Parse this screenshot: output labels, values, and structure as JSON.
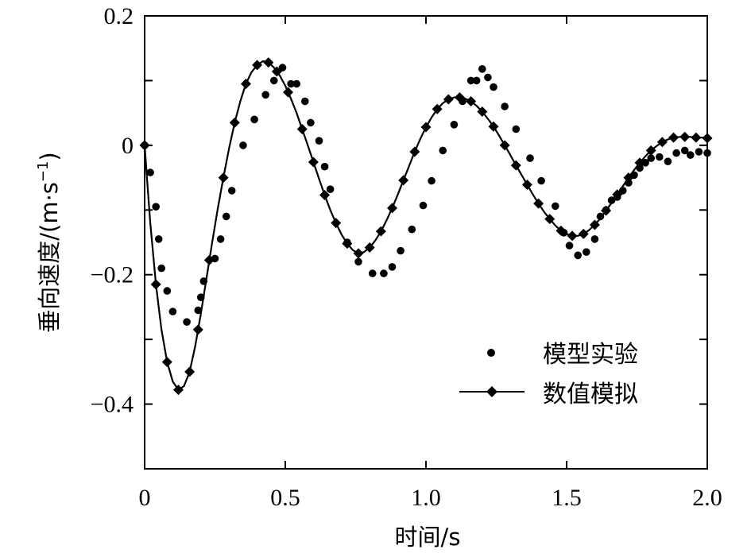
{
  "chart_data": {
    "type": "line",
    "xlabel": "时间/s",
    "ylabel_main": "垂向速度/(m·s",
    "ylabel_sup": "−1",
    "ylabel_end": ")",
    "xlim": [
      0,
      2.0
    ],
    "ylim": [
      -0.5,
      0.2
    ],
    "xticks": [
      0,
      0.5,
      1.0,
      1.5,
      2.0
    ],
    "xtick_labels": [
      "0",
      "0.5",
      "1.0",
      "1.5",
      "2.0"
    ],
    "yticks": [
      0.2,
      0,
      -0.2,
      -0.4
    ],
    "ytick_labels": [
      "0.2",
      "0",
      "−0.2",
      "−0.4"
    ],
    "yminor_ticks": [
      0.1,
      -0.1,
      -0.3,
      -0.5
    ],
    "grid": false,
    "legend_position": "bottom-right",
    "series": [
      {
        "name": "模型实验",
        "style": "dots",
        "color": "#000000",
        "x": [
          0.0,
          0.02,
          0.04,
          0.05,
          0.06,
          0.08,
          0.1,
          0.15,
          0.19,
          0.2,
          0.21,
          0.25,
          0.27,
          0.29,
          0.31,
          0.35,
          0.39,
          0.43,
          0.46,
          0.49,
          0.52,
          0.54,
          0.57,
          0.59,
          0.62,
          0.64,
          0.66,
          0.72,
          0.76,
          0.81,
          0.85,
          0.88,
          0.91,
          0.95,
          0.99,
          1.02,
          1.06,
          1.1,
          1.13,
          1.16,
          1.18,
          1.2,
          1.22,
          1.24,
          1.28,
          1.32,
          1.37,
          1.41,
          1.46,
          1.49,
          1.51,
          1.54,
          1.57,
          1.6,
          1.62,
          1.64,
          1.66,
          1.68,
          1.7,
          1.72,
          1.74,
          1.76,
          1.78,
          1.8,
          1.83,
          1.86,
          1.89,
          1.92,
          1.94,
          1.97,
          2.0
        ],
        "y": [
          0.0,
          -0.042,
          -0.095,
          -0.145,
          -0.19,
          -0.225,
          -0.257,
          -0.273,
          -0.255,
          -0.235,
          -0.21,
          -0.175,
          -0.145,
          -0.11,
          -0.07,
          0.0,
          0.04,
          0.078,
          0.1,
          0.12,
          0.095,
          0.095,
          0.068,
          0.035,
          0.007,
          -0.033,
          -0.068,
          -0.15,
          -0.18,
          -0.198,
          -0.198,
          -0.188,
          -0.163,
          -0.13,
          -0.093,
          -0.055,
          -0.008,
          0.032,
          0.068,
          0.1,
          0.1,
          0.118,
          0.105,
          0.09,
          0.06,
          0.025,
          -0.02,
          -0.055,
          -0.094,
          -0.135,
          -0.155,
          -0.17,
          -0.165,
          -0.145,
          -0.11,
          -0.1,
          -0.085,
          -0.08,
          -0.07,
          -0.058,
          -0.046,
          -0.035,
          -0.027,
          -0.02,
          -0.018,
          -0.025,
          -0.012,
          -0.008,
          -0.015,
          -0.01,
          -0.012
        ]
      },
      {
        "name": "数值模拟",
        "style": "line-diamond",
        "color": "#000000",
        "x": [
          0.0,
          0.01,
          0.02,
          0.04,
          0.06,
          0.08,
          0.1,
          0.12,
          0.14,
          0.16,
          0.18,
          0.2,
          0.22,
          0.24,
          0.26,
          0.28,
          0.3,
          0.32,
          0.34,
          0.36,
          0.38,
          0.4,
          0.42,
          0.44,
          0.46,
          0.48,
          0.5,
          0.52,
          0.54,
          0.56,
          0.58,
          0.6,
          0.62,
          0.64,
          0.66,
          0.68,
          0.7,
          0.72,
          0.74,
          0.76,
          0.78,
          0.8,
          0.82,
          0.84,
          0.86,
          0.88,
          0.9,
          0.92,
          0.94,
          0.96,
          0.98,
          1.0,
          1.02,
          1.04,
          1.06,
          1.08,
          1.1,
          1.12,
          1.14,
          1.16,
          1.18,
          1.2,
          1.22,
          1.24,
          1.26,
          1.28,
          1.3,
          1.32,
          1.34,
          1.36,
          1.38,
          1.4,
          1.42,
          1.44,
          1.46,
          1.48,
          1.5,
          1.52,
          1.54,
          1.56,
          1.58,
          1.6,
          1.62,
          1.64,
          1.66,
          1.68,
          1.7,
          1.72,
          1.74,
          1.76,
          1.78,
          1.8,
          1.82,
          1.84,
          1.86,
          1.88,
          1.9,
          1.92,
          1.94,
          1.96,
          1.98,
          2.0
        ],
        "y": [
          0.0,
          -0.06,
          -0.12,
          -0.215,
          -0.285,
          -0.335,
          -0.365,
          -0.378,
          -0.372,
          -0.35,
          -0.31,
          -0.26,
          -0.205,
          -0.15,
          -0.098,
          -0.05,
          -0.005,
          0.035,
          0.068,
          0.095,
          0.113,
          0.124,
          0.13,
          0.128,
          0.12,
          0.108,
          0.092,
          0.072,
          0.05,
          0.025,
          0.0,
          -0.026,
          -0.052,
          -0.077,
          -0.1,
          -0.12,
          -0.138,
          -0.152,
          -0.162,
          -0.167,
          -0.165,
          -0.158,
          -0.147,
          -0.133,
          -0.116,
          -0.097,
          -0.076,
          -0.054,
          -0.032,
          -0.01,
          0.01,
          0.028,
          0.043,
          0.056,
          0.065,
          0.071,
          0.074,
          0.074,
          0.072,
          0.068,
          0.061,
          0.052,
          0.041,
          0.029,
          0.015,
          0.0,
          -0.015,
          -0.031,
          -0.046,
          -0.061,
          -0.076,
          -0.09,
          -0.103,
          -0.114,
          -0.124,
          -0.132,
          -0.137,
          -0.14,
          -0.14,
          -0.137,
          -0.131,
          -0.123,
          -0.113,
          -0.101,
          -0.089,
          -0.076,
          -0.063,
          -0.05,
          -0.038,
          -0.027,
          -0.017,
          -0.008,
          -0.001,
          0.005,
          0.009,
          0.012,
          0.013,
          0.013,
          0.013,
          0.012,
          0.012,
          0.011
        ]
      }
    ],
    "diamond_marker_x": [
      0.0,
      0.04,
      0.08,
      0.12,
      0.16,
      0.19,
      0.23,
      0.28,
      0.32,
      0.36,
      0.4,
      0.44,
      0.47,
      0.51,
      0.56,
      0.6,
      0.64,
      0.68,
      0.72,
      0.76,
      0.8,
      0.84,
      0.88,
      0.92,
      0.96,
      1.0,
      1.04,
      1.08,
      1.12,
      1.16,
      1.2,
      1.24,
      1.28,
      1.32,
      1.36,
      1.4,
      1.44,
      1.48,
      1.52,
      1.56,
      1.6,
      1.64,
      1.68,
      1.72,
      1.76,
      1.8,
      1.84,
      1.88,
      1.92,
      1.96,
      2.0
    ]
  }
}
